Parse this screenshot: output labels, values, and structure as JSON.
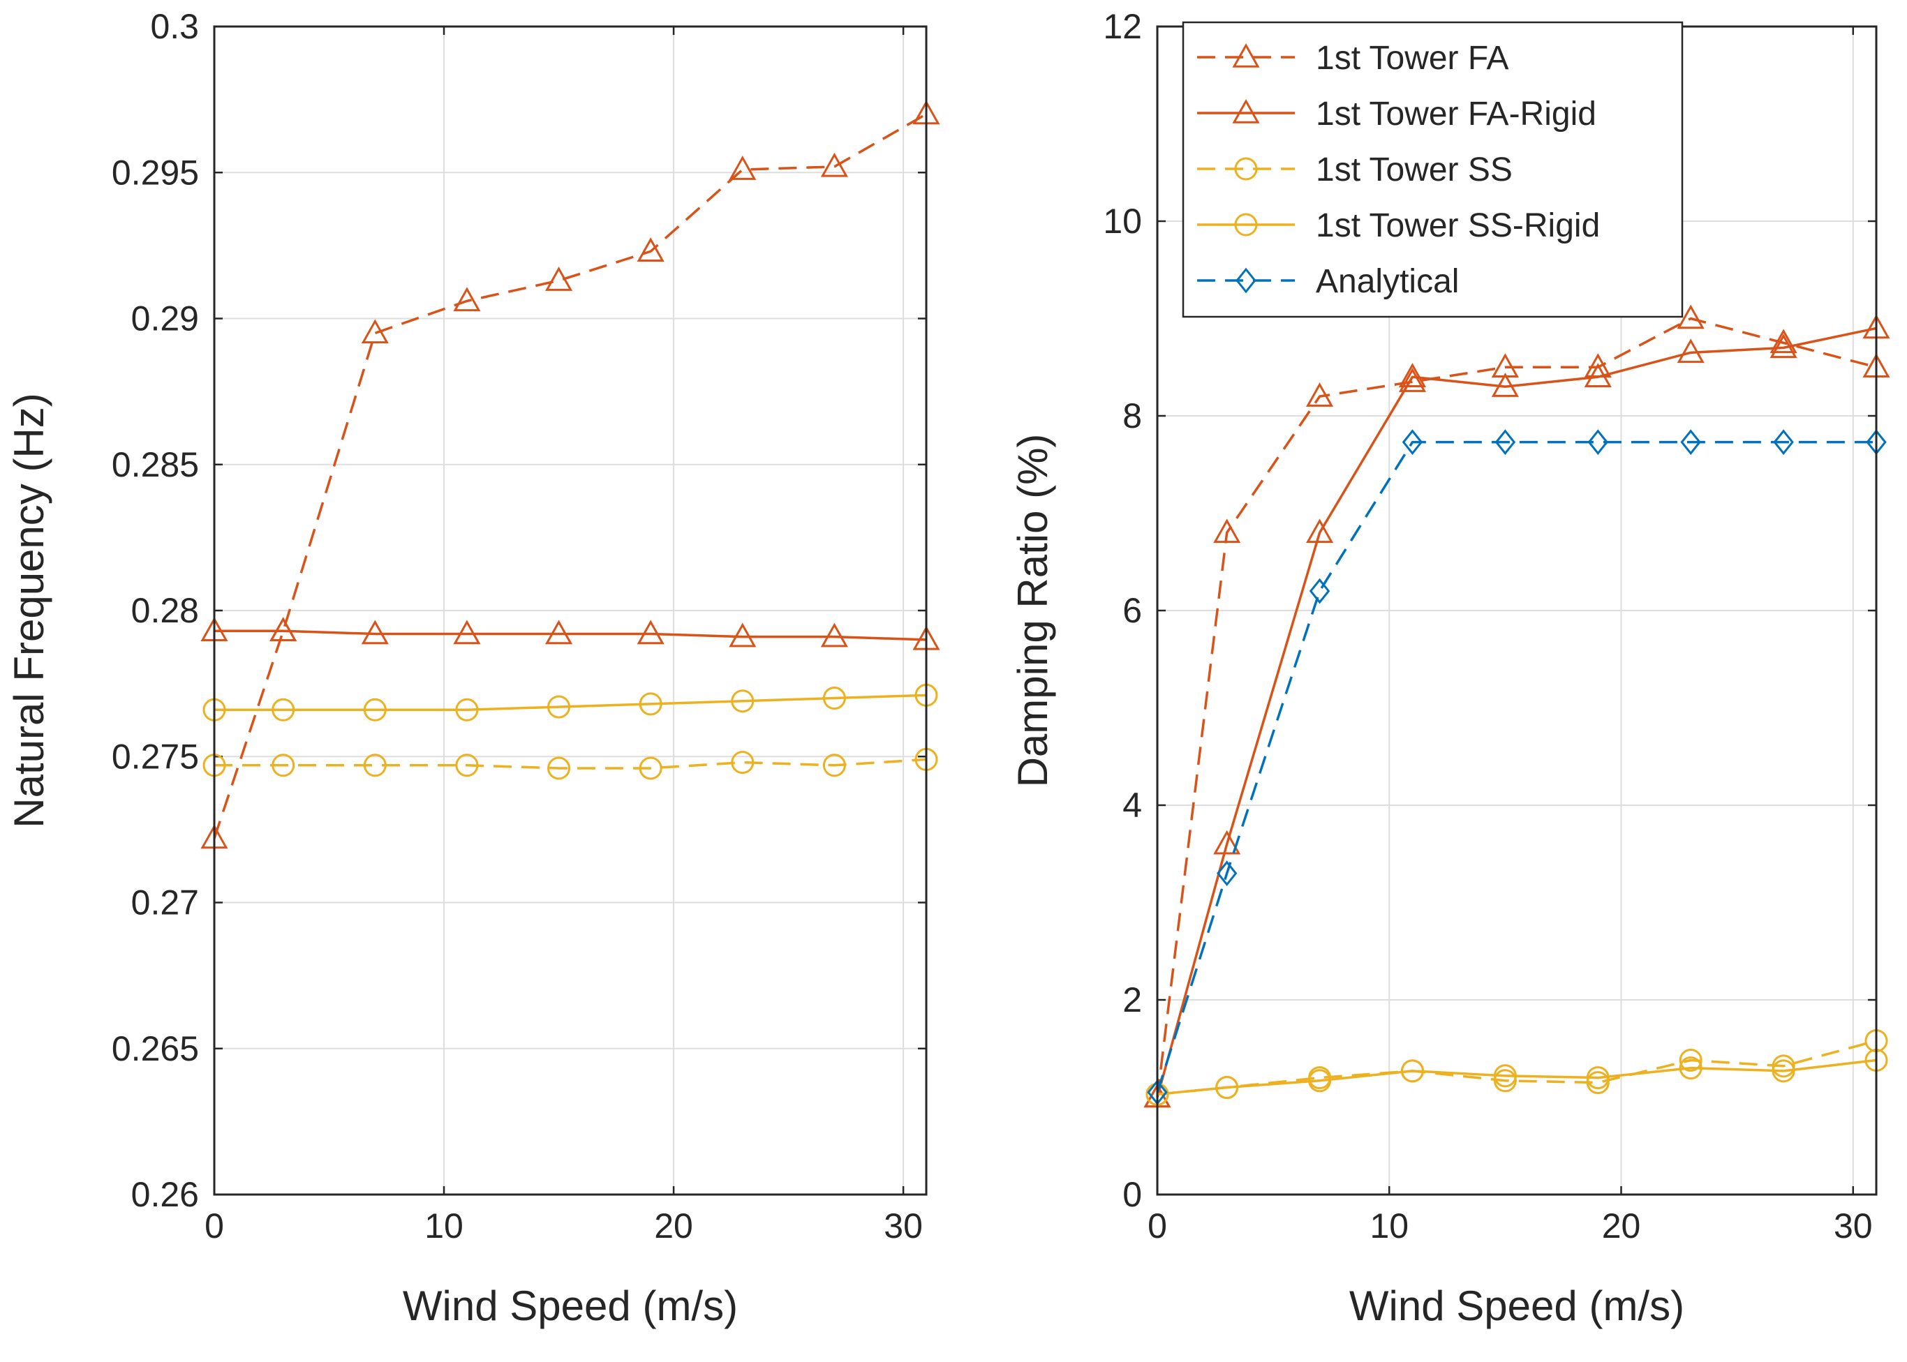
{
  "colors": {
    "fa": "#D95319",
    "ss": "#EDB120",
    "analytical": "#0072BD",
    "grid": "#DDDDDD",
    "axis": "#262626"
  },
  "chart_data": [
    {
      "type": "line",
      "xlabel": "Wind Speed (m/s)",
      "ylabel": "Natural Frequency (Hz)",
      "xlim": [
        0,
        31
      ],
      "ylim": [
        0.26,
        0.3
      ],
      "xticks": [
        0,
        10,
        20,
        30
      ],
      "xtick_labels": [
        "0",
        "10",
        "20",
        "30"
      ],
      "yticks": [
        0.26,
        0.265,
        0.27,
        0.275,
        0.28,
        0.285,
        0.29,
        0.295,
        0.3
      ],
      "ytick_labels": [
        "0.26",
        "0.265",
        "0.27",
        "0.275",
        "0.28",
        "0.285",
        "0.29",
        "0.295",
        "0.3"
      ],
      "grid": true,
      "legend": null,
      "x": [
        0,
        3,
        7,
        11,
        15,
        19,
        23,
        27,
        31
      ],
      "series": [
        {
          "name": "1st Tower FA",
          "color_key": "fa",
          "dash": true,
          "marker": "triangle",
          "values": [
            0.2722,
            0.2793,
            0.2895,
            0.2906,
            0.2913,
            0.2923,
            0.2951,
            0.2952,
            0.297
          ]
        },
        {
          "name": "1st Tower FA-Rigid",
          "color_key": "fa",
          "dash": false,
          "marker": "triangle",
          "values": [
            0.2793,
            0.2793,
            0.2792,
            0.2792,
            0.2792,
            0.2792,
            0.2791,
            0.2791,
            0.279
          ]
        },
        {
          "name": "1st Tower SS",
          "color_key": "ss",
          "dash": true,
          "marker": "circle",
          "values": [
            0.2747,
            0.2747,
            0.2747,
            0.2747,
            0.2746,
            0.2746,
            0.2748,
            0.2747,
            0.2749
          ]
        },
        {
          "name": "1st Tower SS-Rigid",
          "color_key": "ss",
          "dash": false,
          "marker": "circle",
          "values": [
            0.2766,
            0.2766,
            0.2766,
            0.2766,
            0.2767,
            0.2768,
            0.2769,
            0.277,
            0.2771
          ]
        }
      ]
    },
    {
      "type": "line",
      "xlabel": "Wind Speed (m/s)",
      "ylabel": "Damping Ratio (%)",
      "xlim": [
        0,
        31
      ],
      "ylim": [
        0,
        12
      ],
      "xticks": [
        0,
        10,
        20,
        30
      ],
      "xtick_labels": [
        "0",
        "10",
        "20",
        "30"
      ],
      "yticks": [
        0,
        2,
        4,
        6,
        8,
        10,
        12
      ],
      "ytick_labels": [
        "0",
        "2",
        "4",
        "6",
        "8",
        "10",
        "12"
      ],
      "grid": true,
      "legend": "top-left",
      "x": [
        0,
        3,
        7,
        11,
        15,
        19,
        23,
        27,
        31
      ],
      "series": [
        {
          "name": "1st Tower FA",
          "color_key": "fa",
          "dash": true,
          "marker": "triangle",
          "values": [
            1.0,
            6.8,
            8.2,
            8.35,
            8.5,
            8.5,
            9.0,
            8.75,
            8.5
          ]
        },
        {
          "name": "1st Tower FA-Rigid",
          "color_key": "fa",
          "dash": false,
          "marker": "triangle",
          "values": [
            1.0,
            3.6,
            6.8,
            8.4,
            8.3,
            8.4,
            8.65,
            8.7,
            8.9
          ]
        },
        {
          "name": "1st Tower SS",
          "color_key": "ss",
          "dash": true,
          "marker": "circle",
          "values": [
            1.03,
            1.1,
            1.2,
            1.27,
            1.17,
            1.15,
            1.38,
            1.32,
            1.58
          ]
        },
        {
          "name": "1st Tower SS-Rigid",
          "color_key": "ss",
          "dash": false,
          "marker": "circle",
          "values": [
            1.03,
            1.1,
            1.17,
            1.27,
            1.22,
            1.2,
            1.3,
            1.27,
            1.38
          ]
        },
        {
          "name": "Analytical",
          "color_key": "analytical",
          "dash": true,
          "marker": "diamond",
          "values": [
            1.05,
            3.3,
            6.2,
            7.73,
            7.73,
            7.73,
            7.73,
            7.73,
            7.73
          ]
        }
      ]
    }
  ]
}
